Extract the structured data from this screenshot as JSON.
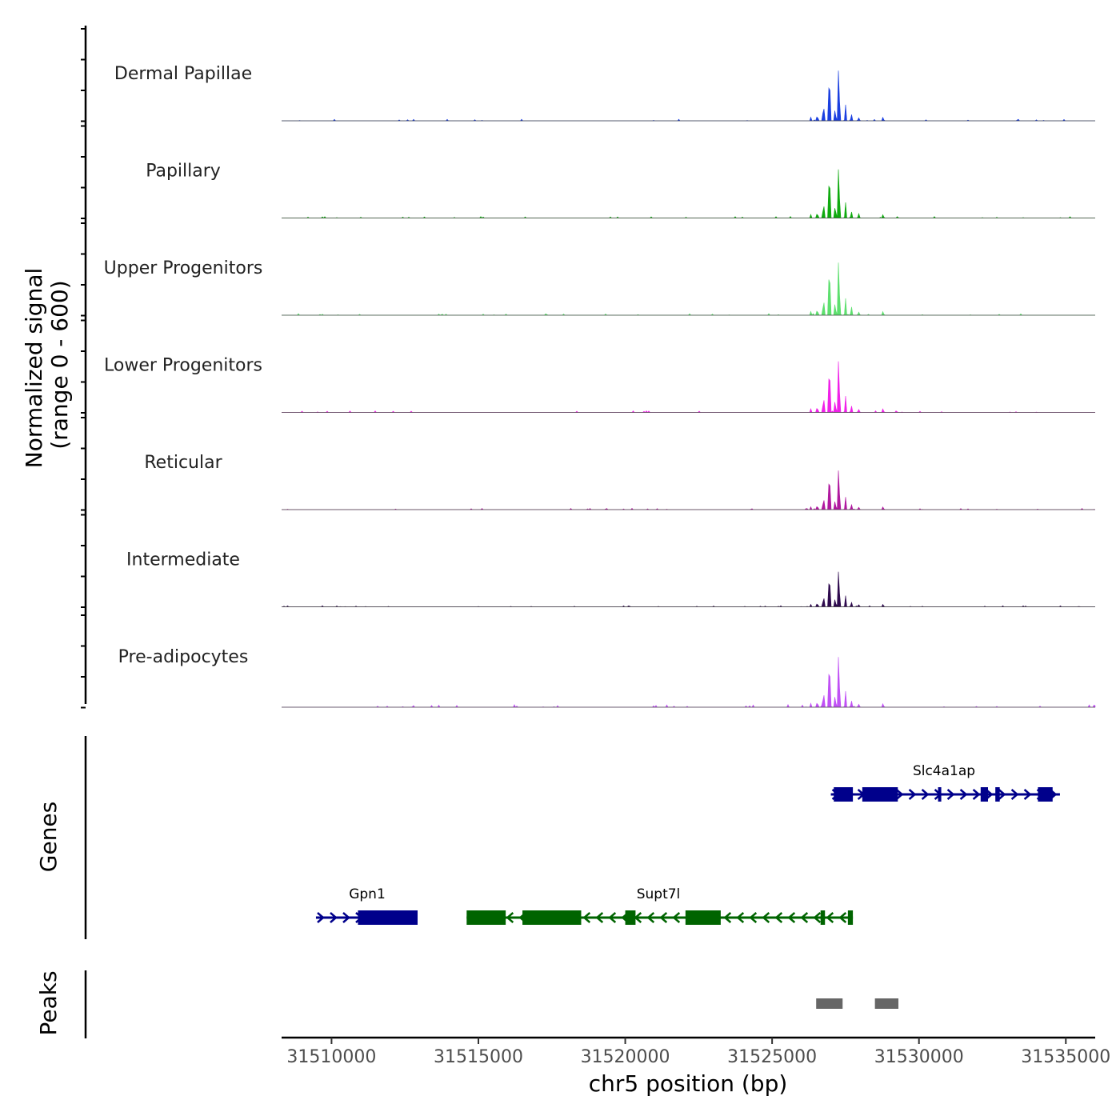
{
  "chart_data": {
    "type": "area",
    "title": "",
    "ylabel_line1": "Normalized signal",
    "ylabel_line2": "(range 0 - 600)",
    "xlabel": "chr5 position (bp)",
    "genes_label": "Genes",
    "peaks_label": "Peaks",
    "xlim": [
      31508300,
      31536000
    ],
    "ylim": [
      0,
      600
    ],
    "x_ticks": [
      31510000,
      31515000,
      31520000,
      31525000,
      31530000,
      31535000
    ],
    "x_tick_labels": [
      "31510000",
      "31515000",
      "31520000",
      "31525000",
      "31530000",
      "31535000"
    ],
    "tracks": [
      {
        "name": "Dermal Papillae",
        "color": "#1a3fe0",
        "scale": 1.0
      },
      {
        "name": "Papillary",
        "color": "#0faa0f",
        "scale": 0.97
      },
      {
        "name": "Upper Progenitors",
        "color": "#5ddf6e",
        "scale": 1.05
      },
      {
        "name": "Lower Progenitors",
        "color": "#f020e8",
        "scale": 1.02
      },
      {
        "name": "Reticular",
        "color": "#b0189f",
        "scale": 0.78
      },
      {
        "name": "Intermediate",
        "color": "#2e0a4e",
        "scale": 0.7
      },
      {
        "name": "Pre-adipocytes",
        "color": "#c050f5",
        "scale": 1.0
      }
    ],
    "peak_positions": [
      {
        "x": 31526320,
        "y": 0.05,
        "w": 40
      },
      {
        "x": 31526540,
        "y": 0.12,
        "w": 45
      },
      {
        "x": 31526750,
        "y": 0.28,
        "w": 50
      },
      {
        "x": 31526950,
        "y": 0.85,
        "w": 55
      },
      {
        "x": 31527150,
        "y": 0.25,
        "w": 45
      },
      {
        "x": 31527270,
        "y": 0.9,
        "w": 55
      },
      {
        "x": 31527500,
        "y": 0.22,
        "w": 50
      },
      {
        "x": 31527700,
        "y": 0.09,
        "w": 60
      },
      {
        "x": 31527950,
        "y": 0.04,
        "w": 70
      },
      {
        "x": 31528780,
        "y": 0.06,
        "w": 50
      }
    ],
    "genes": [
      {
        "name": "Slc4a1ap",
        "strand": "+",
        "start": 31527000,
        "end": 31534800,
        "color": "#00008b",
        "row": 1,
        "exons": [
          [
            31527100,
            31527750
          ],
          [
            31528070,
            31529280
          ],
          [
            31530650,
            31530730
          ],
          [
            31532100,
            31532350
          ],
          [
            31532600,
            31532750
          ],
          [
            31534050,
            31534550
          ]
        ]
      },
      {
        "name": "Gpn1",
        "strand": "+",
        "start": 31509470,
        "end": 31512900,
        "color": "#00008b",
        "row": 2,
        "exons": [
          [
            31510900,
            31512930
          ]
        ]
      },
      {
        "name": "Supt7l",
        "strand": "-",
        "start": 31514600,
        "end": 31527750,
        "color": "#006400",
        "row": 2,
        "exons": [
          [
            31514600,
            31515930
          ],
          [
            31516500,
            31518500
          ],
          [
            31520000,
            31520350
          ],
          [
            31522050,
            31523250
          ],
          [
            31526650,
            31526800
          ],
          [
            31527580,
            31527750
          ]
        ]
      }
    ],
    "peaks": [
      [
        31526500,
        31527400
      ],
      [
        31528500,
        31529300
      ]
    ],
    "peak_color": "#666666"
  }
}
